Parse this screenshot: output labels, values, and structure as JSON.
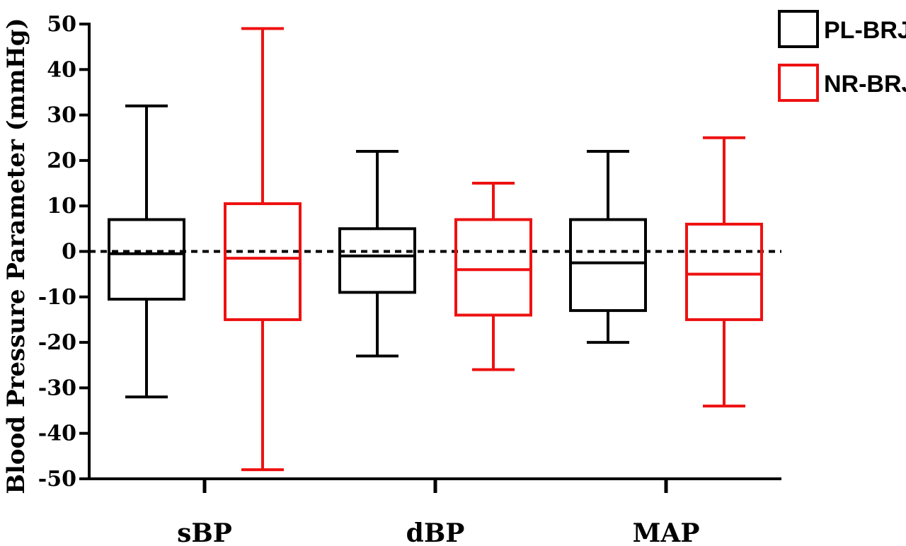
{
  "chart_data": {
    "type": "box",
    "title": "",
    "xlabel": "",
    "ylabel": "Blood Pressure Parameter (mmHg)",
    "ylim": [
      -50,
      50
    ],
    "yticks": [
      50,
      40,
      30,
      20,
      10,
      0,
      -10,
      -20,
      -30,
      -40,
      -50
    ],
    "reference_line": {
      "y": 0,
      "style": "dashed"
    },
    "grid": false,
    "legend_position": "top-right",
    "categories": [
      "sBP",
      "dBP",
      "MAP"
    ],
    "series": [
      {
        "name": "PL-BRJ",
        "color": "#000000",
        "boxes": [
          {
            "min": -32,
            "q1": -10.5,
            "median": -0.5,
            "q3": 7,
            "max": 32
          },
          {
            "min": -23,
            "q1": -9,
            "median": -1,
            "q3": 5,
            "max": 22
          },
          {
            "min": -20,
            "q1": -13,
            "median": -2.5,
            "q3": 7,
            "max": 22
          }
        ]
      },
      {
        "name": "NR-BRJ",
        "color": "#ee1111",
        "boxes": [
          {
            "min": -48,
            "q1": -15,
            "median": -1.5,
            "q3": 10.5,
            "max": 49
          },
          {
            "min": -26,
            "q1": -14,
            "median": -4,
            "q3": 7,
            "max": 15
          },
          {
            "min": -34,
            "q1": -15,
            "median": -5,
            "q3": 6,
            "max": 25
          }
        ]
      }
    ]
  }
}
